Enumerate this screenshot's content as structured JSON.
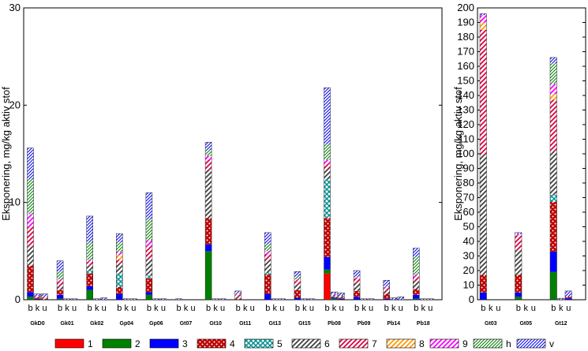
{
  "chart_data": [
    {
      "type": "stacked-bar",
      "ylabel": "Eksponering,  mg/kg aktiv stof",
      "ylim": [
        0,
        30
      ],
      "yticks": [
        0,
        10,
        20,
        30
      ],
      "groups": [
        "GkD0",
        "Gk01",
        "Gk02",
        "Gp04",
        "Gp06",
        "Gt07",
        "Gt10",
        "Gt11",
        "Gt13",
        "Gt15",
        "Pb08",
        "Pb09",
        "Pb14",
        "Pb18"
      ],
      "sub_labels": [
        "b",
        "k",
        "u"
      ],
      "categories": [
        "1",
        "2",
        "3",
        "4",
        "5",
        "6",
        "7",
        "8",
        "9",
        "h",
        "v"
      ],
      "values": [
        [
          [
            0,
            0.3,
            0.5,
            2.7,
            0,
            2.0,
            2.0,
            0,
            1.3,
            3.6,
            3.2
          ],
          [
            0,
            0,
            0.1,
            0.1,
            0,
            0.1,
            0.1,
            0,
            0,
            0,
            0.2
          ],
          [
            0,
            0,
            0,
            0.1,
            0,
            0.1,
            0.1,
            0,
            0,
            0,
            0.3
          ]
        ],
        [
          [
            0,
            0.1,
            0.4,
            0.5,
            0,
            0.4,
            0.5,
            0,
            0.2,
            0.8,
            1.1
          ],
          [
            0,
            0,
            0,
            0,
            0,
            0,
            0,
            0,
            0,
            0,
            0.1
          ],
          [
            0,
            0,
            0,
            0,
            0,
            0,
            0,
            0,
            0,
            0,
            0.1
          ]
        ],
        [
          [
            0,
            1.0,
            0.4,
            1.3,
            0.3,
            0.5,
            0.4,
            0,
            0.2,
            1.8,
            2.7
          ],
          [
            0,
            0,
            0,
            0,
            0,
            0,
            0,
            0,
            0,
            0,
            0.1
          ],
          [
            0,
            0,
            0,
            0,
            0,
            0,
            0,
            0,
            0,
            0,
            0.2
          ]
        ],
        [
          [
            0,
            0,
            0.6,
            0.7,
            1.4,
            1.0,
            0.4,
            0.5,
            0.3,
            1.0,
            0.9
          ],
          [
            0,
            0,
            0,
            0,
            0,
            0,
            0,
            0,
            0,
            0,
            0.1
          ],
          [
            0,
            0,
            0,
            0,
            0,
            0,
            0,
            0,
            0,
            0,
            0.1
          ]
        ],
        [
          [
            0,
            0.5,
            0.3,
            1.4,
            0.3,
            1.7,
            1.3,
            0,
            0.6,
            2.2,
            2.7
          ],
          [
            0,
            0,
            0,
            0,
            0,
            0,
            0,
            0,
            0,
            0,
            0.1
          ],
          [
            0,
            0,
            0,
            0,
            0,
            0,
            0,
            0,
            0,
            0,
            0.1
          ]
        ],
        [
          [
            0,
            0,
            0,
            0,
            0,
            0,
            0,
            0,
            0,
            0,
            0.1
          ],
          [
            0,
            0,
            0,
            0,
            0,
            0,
            0,
            0,
            0,
            0,
            0
          ],
          [
            0,
            0,
            0,
            0,
            0,
            0,
            0,
            0,
            0,
            0,
            0
          ]
        ],
        [
          [
            0,
            5.0,
            0.7,
            2.7,
            0,
            5.0,
            1.0,
            0,
            0.4,
            0.6,
            0.8
          ],
          [
            0,
            0,
            0,
            0,
            0,
            0,
            0,
            0,
            0,
            0,
            0.1
          ],
          [
            0,
            0,
            0,
            0,
            0,
            0,
            0,
            0,
            0,
            0,
            0.1
          ]
        ],
        [
          [
            0,
            0,
            0,
            0.1,
            0,
            0.2,
            0.2,
            0,
            0.1,
            0.1,
            0.2
          ],
          [
            0,
            0,
            0,
            0,
            0,
            0,
            0,
            0,
            0,
            0,
            0
          ],
          [
            0,
            0,
            0,
            0,
            0,
            0,
            0,
            0,
            0,
            0,
            0
          ]
        ],
        [
          [
            0,
            0,
            0.6,
            2.0,
            0.2,
            1.3,
            0.6,
            0,
            0.3,
            0.7,
            1.2
          ],
          [
            0,
            0,
            0,
            0,
            0,
            0,
            0,
            0,
            0,
            0,
            0.1
          ],
          [
            0,
            0,
            0,
            0,
            0,
            0,
            0,
            0,
            0,
            0,
            0.1
          ]
        ],
        [
          [
            0,
            0,
            0.2,
            0.8,
            0,
            0.6,
            0.4,
            0,
            0.1,
            0.3,
            0.5
          ],
          [
            0,
            0,
            0,
            0,
            0,
            0,
            0,
            0,
            0,
            0,
            0.1
          ],
          [
            0,
            0,
            0,
            0,
            0,
            0,
            0,
            0,
            0,
            0,
            0.1
          ]
        ],
        [
          [
            2.7,
            0.4,
            1.3,
            4.0,
            4.0,
            1.1,
            0.5,
            0,
            0.4,
            1.6,
            5.8
          ],
          [
            0,
            0.1,
            0.1,
            0.1,
            0.1,
            0.1,
            0,
            0,
            0.1,
            0,
            0.2
          ],
          [
            0,
            0,
            0.1,
            0.1,
            0,
            0.2,
            0,
            0,
            0,
            0,
            0.3
          ]
        ],
        [
          [
            0,
            0,
            0.3,
            0.6,
            0,
            0.8,
            0.5,
            0,
            0.1,
            0.1,
            0.6
          ],
          [
            0,
            0,
            0,
            0,
            0,
            0,
            0,
            0,
            0,
            0,
            0.1
          ],
          [
            0,
            0,
            0,
            0,
            0,
            0,
            0,
            0,
            0,
            0,
            0.1
          ]
        ],
        [
          [
            0,
            0,
            0.1,
            0.5,
            0,
            0.3,
            0.3,
            0,
            0.1,
            0.1,
            0.6
          ],
          [
            0,
            0,
            0,
            0,
            0,
            0,
            0,
            0,
            0,
            0,
            0.2
          ],
          [
            0,
            0,
            0,
            0,
            0,
            0,
            0,
            0,
            0,
            0,
            0.3
          ]
        ],
        [
          [
            0,
            0.1,
            0.4,
            0.6,
            0,
            0.8,
            0.4,
            0,
            0.3,
            1.8,
            0.9
          ],
          [
            0,
            0,
            0,
            0,
            0,
            0,
            0,
            0,
            0,
            0,
            0.1
          ],
          [
            0,
            0,
            0,
            0,
            0,
            0,
            0,
            0,
            0,
            0,
            0.1
          ]
        ]
      ]
    },
    {
      "type": "stacked-bar",
      "ylabel": "Eksponering,  mg/kg aktiv stof",
      "ylim": [
        0,
        200
      ],
      "yticks": [
        0,
        10,
        20,
        30,
        40,
        50,
        60,
        70,
        80,
        90,
        100,
        110,
        120,
        130,
        140,
        150,
        160,
        170,
        180,
        190,
        200
      ],
      "groups": [
        "Gt03",
        "Gt05",
        "Gt12"
      ],
      "sub_labels": [
        "b",
        "k",
        "u"
      ],
      "categories": [
        "1",
        "2",
        "3",
        "4",
        "5",
        "6",
        "7",
        "8",
        "9",
        "h",
        "v"
      ],
      "values": [
        [
          [
            0,
            0,
            5,
            12,
            0,
            83,
            85,
            5,
            5,
            0,
            1
          ],
          [
            0,
            0,
            0,
            0,
            0,
            0,
            0,
            0,
            0,
            0,
            0
          ],
          [
            0,
            0,
            0,
            0,
            0,
            0,
            0,
            0,
            0,
            0,
            0
          ]
        ],
        [
          [
            0,
            2,
            3,
            12,
            0,
            17,
            10,
            0,
            1,
            0,
            1
          ],
          [
            0,
            0,
            0,
            0,
            0,
            0,
            0,
            0,
            0,
            0,
            0
          ],
          [
            0,
            0,
            0,
            0,
            0,
            0,
            0,
            0,
            0,
            0,
            0
          ]
        ],
        [
          [
            0,
            19,
            14,
            34,
            5,
            30,
            35,
            4,
            7,
            14,
            4
          ],
          [
            0,
            0,
            0,
            0,
            0,
            0,
            0,
            0,
            0,
            0,
            1
          ],
          [
            0,
            0,
            1,
            1,
            0,
            0,
            0,
            0,
            0,
            0,
            4
          ]
        ]
      ]
    }
  ],
  "legend": [
    {
      "key": "1",
      "color": "#ff0000",
      "pattern": "solid"
    },
    {
      "key": "2",
      "color": "#008000",
      "pattern": "solid"
    },
    {
      "key": "3",
      "color": "#0000ff",
      "pattern": "solid"
    },
    {
      "key": "4",
      "color": "#c00000",
      "pattern": "dots"
    },
    {
      "key": "5",
      "color": "#009090",
      "pattern": "crosshatch"
    },
    {
      "key": "6",
      "color": "#404040",
      "pattern": "diagonal"
    },
    {
      "key": "7",
      "color": "#e00040",
      "pattern": "diagonal"
    },
    {
      "key": "8",
      "color": "#ff9900",
      "pattern": "diagonal"
    },
    {
      "key": "9",
      "color": "#ff00ff",
      "pattern": "diagonal"
    },
    {
      "key": "h",
      "color": "#008000",
      "pattern": "diagonal-fine"
    },
    {
      "key": "v",
      "color": "#0000ff",
      "pattern": "diagonal-fine"
    }
  ]
}
